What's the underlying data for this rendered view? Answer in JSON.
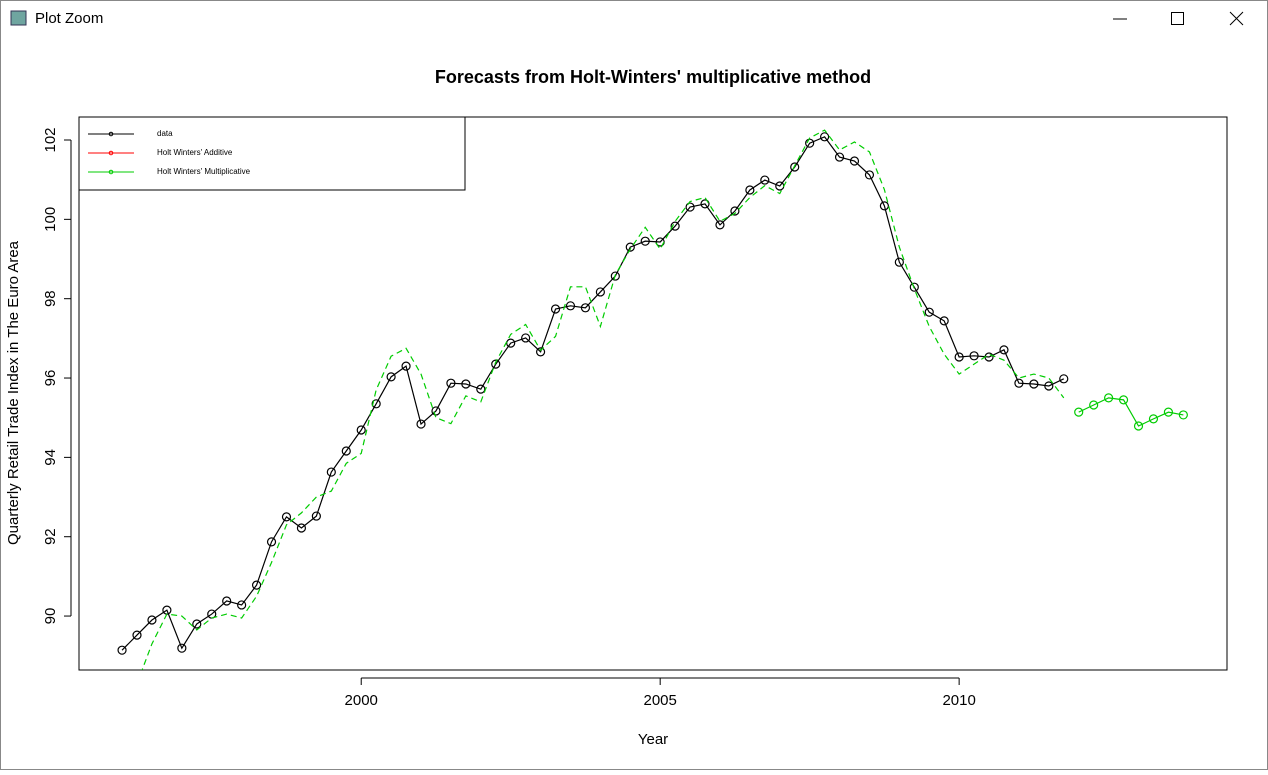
{
  "window": {
    "title": "Plot Zoom"
  },
  "chart_data": {
    "type": "line",
    "title": "Forecasts from Holt-Winters' multiplicative method",
    "x_label": "Year",
    "y_label": "Quarterly Retail Trade Index in The Euro Area",
    "xlim": [
      1995.28,
      2014.48
    ],
    "ylim": [
      88.64,
      102.58
    ],
    "xticks": [
      2000,
      2005,
      2010
    ],
    "yticks": [
      90,
      92,
      94,
      96,
      98,
      100,
      102
    ],
    "legend_position": "top-left",
    "legend": [
      {
        "label": "data",
        "color": "#000000"
      },
      {
        "label": "Holt Winters' Additive",
        "color": "#ff0000"
      },
      {
        "label": "Holt Winters' Multiplicative",
        "color": "#00cc00"
      }
    ],
    "series": [
      {
        "color": "#000000",
        "style": "solid",
        "markers": true,
        "x": [
          1996,
          1996.25,
          1996.5,
          1996.75,
          1997,
          1997.25,
          1997.5,
          1997.75,
          1998,
          1998.25,
          1998.5,
          1998.75,
          1999,
          1999.25,
          1999.5,
          1999.75,
          2000,
          2000.25,
          2000.5,
          2000.75,
          2001,
          2001.25,
          2001.5,
          2001.75,
          2002,
          2002.25,
          2002.5,
          2002.75,
          2003,
          2003.25,
          2003.5,
          2003.75,
          2004,
          2004.25,
          2004.5,
          2004.75,
          2005,
          2005.25,
          2005.5,
          2005.75,
          2006,
          2006.25,
          2006.5,
          2006.75,
          2007,
          2007.25,
          2007.5,
          2007.75,
          2008,
          2008.25,
          2008.5,
          2008.75,
          2009,
          2009.25,
          2009.5,
          2009.75,
          2010,
          2010.25,
          2010.5,
          2010.75,
          2011,
          2011.25,
          2011.5,
          2011.75
        ],
        "values": [
          89.14,
          89.52,
          89.9,
          90.15,
          89.19,
          89.8,
          90.05,
          90.38,
          90.28,
          90.78,
          91.87,
          92.5,
          92.22,
          92.52,
          93.63,
          94.16,
          94.69,
          95.35,
          96.03,
          96.3,
          94.84,
          95.17,
          95.87,
          95.85,
          95.72,
          96.35,
          96.88,
          97.01,
          96.66,
          97.74,
          97.82,
          97.77,
          98.17,
          98.57,
          99.3,
          99.45,
          99.43,
          99.83,
          100.31,
          100.39,
          99.86,
          100.21,
          100.74,
          100.99,
          100.84,
          101.32,
          101.92,
          102.08,
          101.57,
          101.47,
          101.12,
          100.34,
          98.92,
          98.29,
          97.66,
          97.44,
          96.53,
          96.56,
          96.53,
          96.71,
          95.87,
          95.85,
          95.8,
          95.98
        ]
      },
      {
        "color": "#00cc00",
        "style": "dashed",
        "markers": false,
        "x": [
          1996.25,
          1996.5,
          1996.75,
          1997,
          1997.25,
          1997.5,
          1997.75,
          1998,
          1998.25,
          1998.5,
          1998.75,
          1999,
          1999.25,
          1999.5,
          1999.75,
          2000,
          2000.25,
          2000.5,
          2000.75,
          2001,
          2001.25,
          2001.5,
          2001.75,
          2002,
          2002.25,
          2002.5,
          2002.75,
          2003,
          2003.25,
          2003.5,
          2003.75,
          2004,
          2004.25,
          2004.5,
          2004.75,
          2005,
          2005.25,
          2005.5,
          2005.75,
          2006,
          2006.25,
          2006.5,
          2006.75,
          2007,
          2007.25,
          2007.5,
          2007.75,
          2008,
          2008.25,
          2008.5,
          2008.75,
          2009,
          2009.25,
          2009.5,
          2009.75,
          2010,
          2010.25,
          2010.5,
          2010.75,
          2011,
          2011.25,
          2011.5,
          2011.75
        ],
        "values": [
          88.3,
          89.3,
          90.05,
          90.0,
          89.65,
          89.95,
          90.05,
          89.95,
          90.5,
          91.35,
          92.3,
          92.6,
          93.0,
          93.15,
          93.85,
          94.1,
          95.7,
          96.55,
          96.75,
          96.1,
          95.0,
          94.85,
          95.55,
          95.4,
          96.4,
          97.1,
          97.35,
          96.7,
          97.05,
          98.3,
          98.3,
          97.3,
          98.6,
          99.25,
          99.8,
          99.25,
          99.95,
          100.45,
          100.55,
          99.95,
          100.15,
          100.55,
          100.85,
          100.65,
          101.35,
          102.05,
          102.25,
          101.75,
          101.95,
          101.7,
          100.75,
          99.3,
          98.25,
          97.3,
          96.6,
          96.1,
          96.35,
          96.6,
          96.45,
          96.0,
          96.1,
          96.0,
          95.5
        ]
      },
      {
        "color": "#00cc00",
        "style": "solid",
        "markers": true,
        "x": [
          2012,
          2012.25,
          2012.5,
          2012.75,
          2013,
          2013.25,
          2013.5,
          2013.75
        ],
        "values": [
          95.14,
          95.32,
          95.5,
          95.45,
          94.79,
          94.97,
          95.14,
          95.07
        ]
      }
    ]
  }
}
